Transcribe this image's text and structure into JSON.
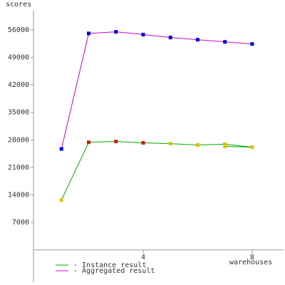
{
  "chart_data": {
    "type": "line",
    "y_label": "scores",
    "x_label": "warehouses",
    "xlim": [
      0,
      9.1
    ],
    "ylim": [
      -8200,
      63600
    ],
    "xticks": [
      4,
      8
    ],
    "yticks": [
      7000,
      14000,
      21000,
      28000,
      35000,
      42000,
      49000,
      56000
    ],
    "series": [
      {
        "name": "- Instance result",
        "color": "#00aa00",
        "x": [
          1,
          2,
          3,
          4,
          5,
          6,
          7,
          8,
          7
        ],
        "values": [
          12700,
          27400,
          27600,
          27250,
          27050,
          26700,
          26900,
          26150,
          26350
        ],
        "point_colors": [
          "#e0c000",
          "#cc2200",
          "#cc2200",
          "#cc2200",
          "#e0c000",
          "#e0c000",
          "#e0c000",
          "#e0c000",
          "#e0c000"
        ]
      },
      {
        "name": "- Aggregated result",
        "color": "#cc00cc",
        "x": [
          1,
          2,
          3,
          4,
          5,
          6,
          7,
          8
        ],
        "values": [
          25700,
          55100,
          55500,
          54800,
          54050,
          53500,
          52950,
          52400
        ],
        "point_color": "#0000dd"
      }
    ]
  }
}
